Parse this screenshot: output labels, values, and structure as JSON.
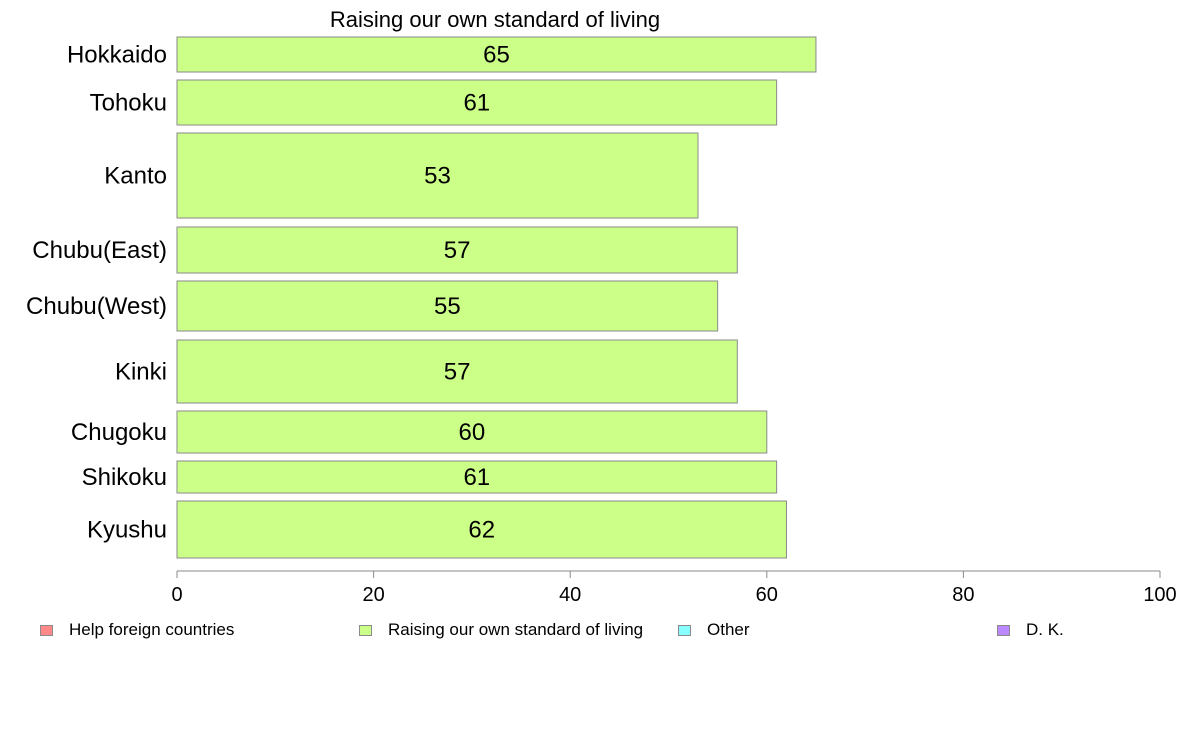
{
  "chart_data": {
    "type": "bar",
    "orientation": "horizontal",
    "title": "Raising our own standard of living",
    "categories": [
      "Hokkaido",
      "Tohoku",
      "Kanto",
      "Chubu(East)",
      "Chubu(West)",
      "Kinki",
      "Chugoku",
      "Shikoku",
      "Kyushu"
    ],
    "series": [
      {
        "name": "Raising our own standard of living",
        "color": "#ccff88",
        "values": [
          65,
          61,
          53,
          57,
          55,
          57,
          60,
          61,
          62
        ],
        "labels": [
          "65",
          "61",
          "53",
          "57",
          "55",
          "57",
          "60",
          "61",
          "62"
        ]
      }
    ],
    "xlim": [
      0,
      100
    ],
    "xticks": [
      "0",
      "20",
      "40",
      "60",
      "80",
      "100"
    ],
    "legend": {
      "placement": "bottom",
      "items": [
        {
          "label": "Help foreign countries",
          "color": "#ff8888"
        },
        {
          "label": "Raising our own standard of living",
          "color": "#ccff88"
        },
        {
          "label": "Other",
          "color": "#88ffff"
        },
        {
          "label": "D. K.",
          "color": "#bb88ff"
        }
      ]
    },
    "grid": false
  }
}
